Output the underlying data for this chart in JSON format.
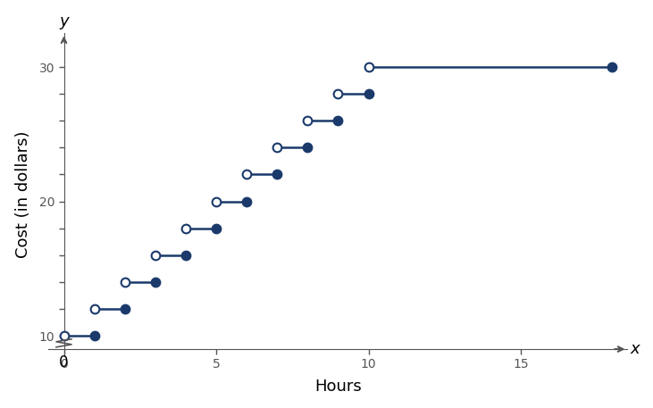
{
  "pieces": [
    {
      "x_start": 0,
      "x_end": 1,
      "y": 10
    },
    {
      "x_start": 1,
      "x_end": 2,
      "y": 12
    },
    {
      "x_start": 2,
      "x_end": 3,
      "y": 14
    },
    {
      "x_start": 3,
      "x_end": 4,
      "y": 16
    },
    {
      "x_start": 4,
      "x_end": 5,
      "y": 18
    },
    {
      "x_start": 5,
      "x_end": 6,
      "y": 20
    },
    {
      "x_start": 6,
      "x_end": 7,
      "y": 22
    },
    {
      "x_start": 7,
      "x_end": 8,
      "y": 24
    },
    {
      "x_start": 8,
      "x_end": 9,
      "y": 26
    },
    {
      "x_start": 9,
      "x_end": 10,
      "y": 28
    },
    {
      "x_start": 10,
      "x_end": 18,
      "y": 30
    }
  ],
  "xlim": [
    -0.5,
    18.5
  ],
  "ylim": [
    8.5,
    32.5
  ],
  "xticks": [
    0,
    5,
    10,
    15
  ],
  "yticks": [
    10,
    12,
    14,
    16,
    18,
    20,
    22,
    24,
    26,
    28,
    30
  ],
  "ytick_labels_show": [
    10,
    20,
    30
  ],
  "xlabel": "Hours",
  "ylabel": "Cost (in dollars)",
  "x_axis_label_right": "x",
  "y_axis_label_top": "y",
  "line_color": "#1b3a6b",
  "open_circle_facecolor": "white",
  "closed_circle_facecolor": "#1b3a6b",
  "marker_size": 7,
  "line_width": 1.8,
  "spine_color": "#555555"
}
